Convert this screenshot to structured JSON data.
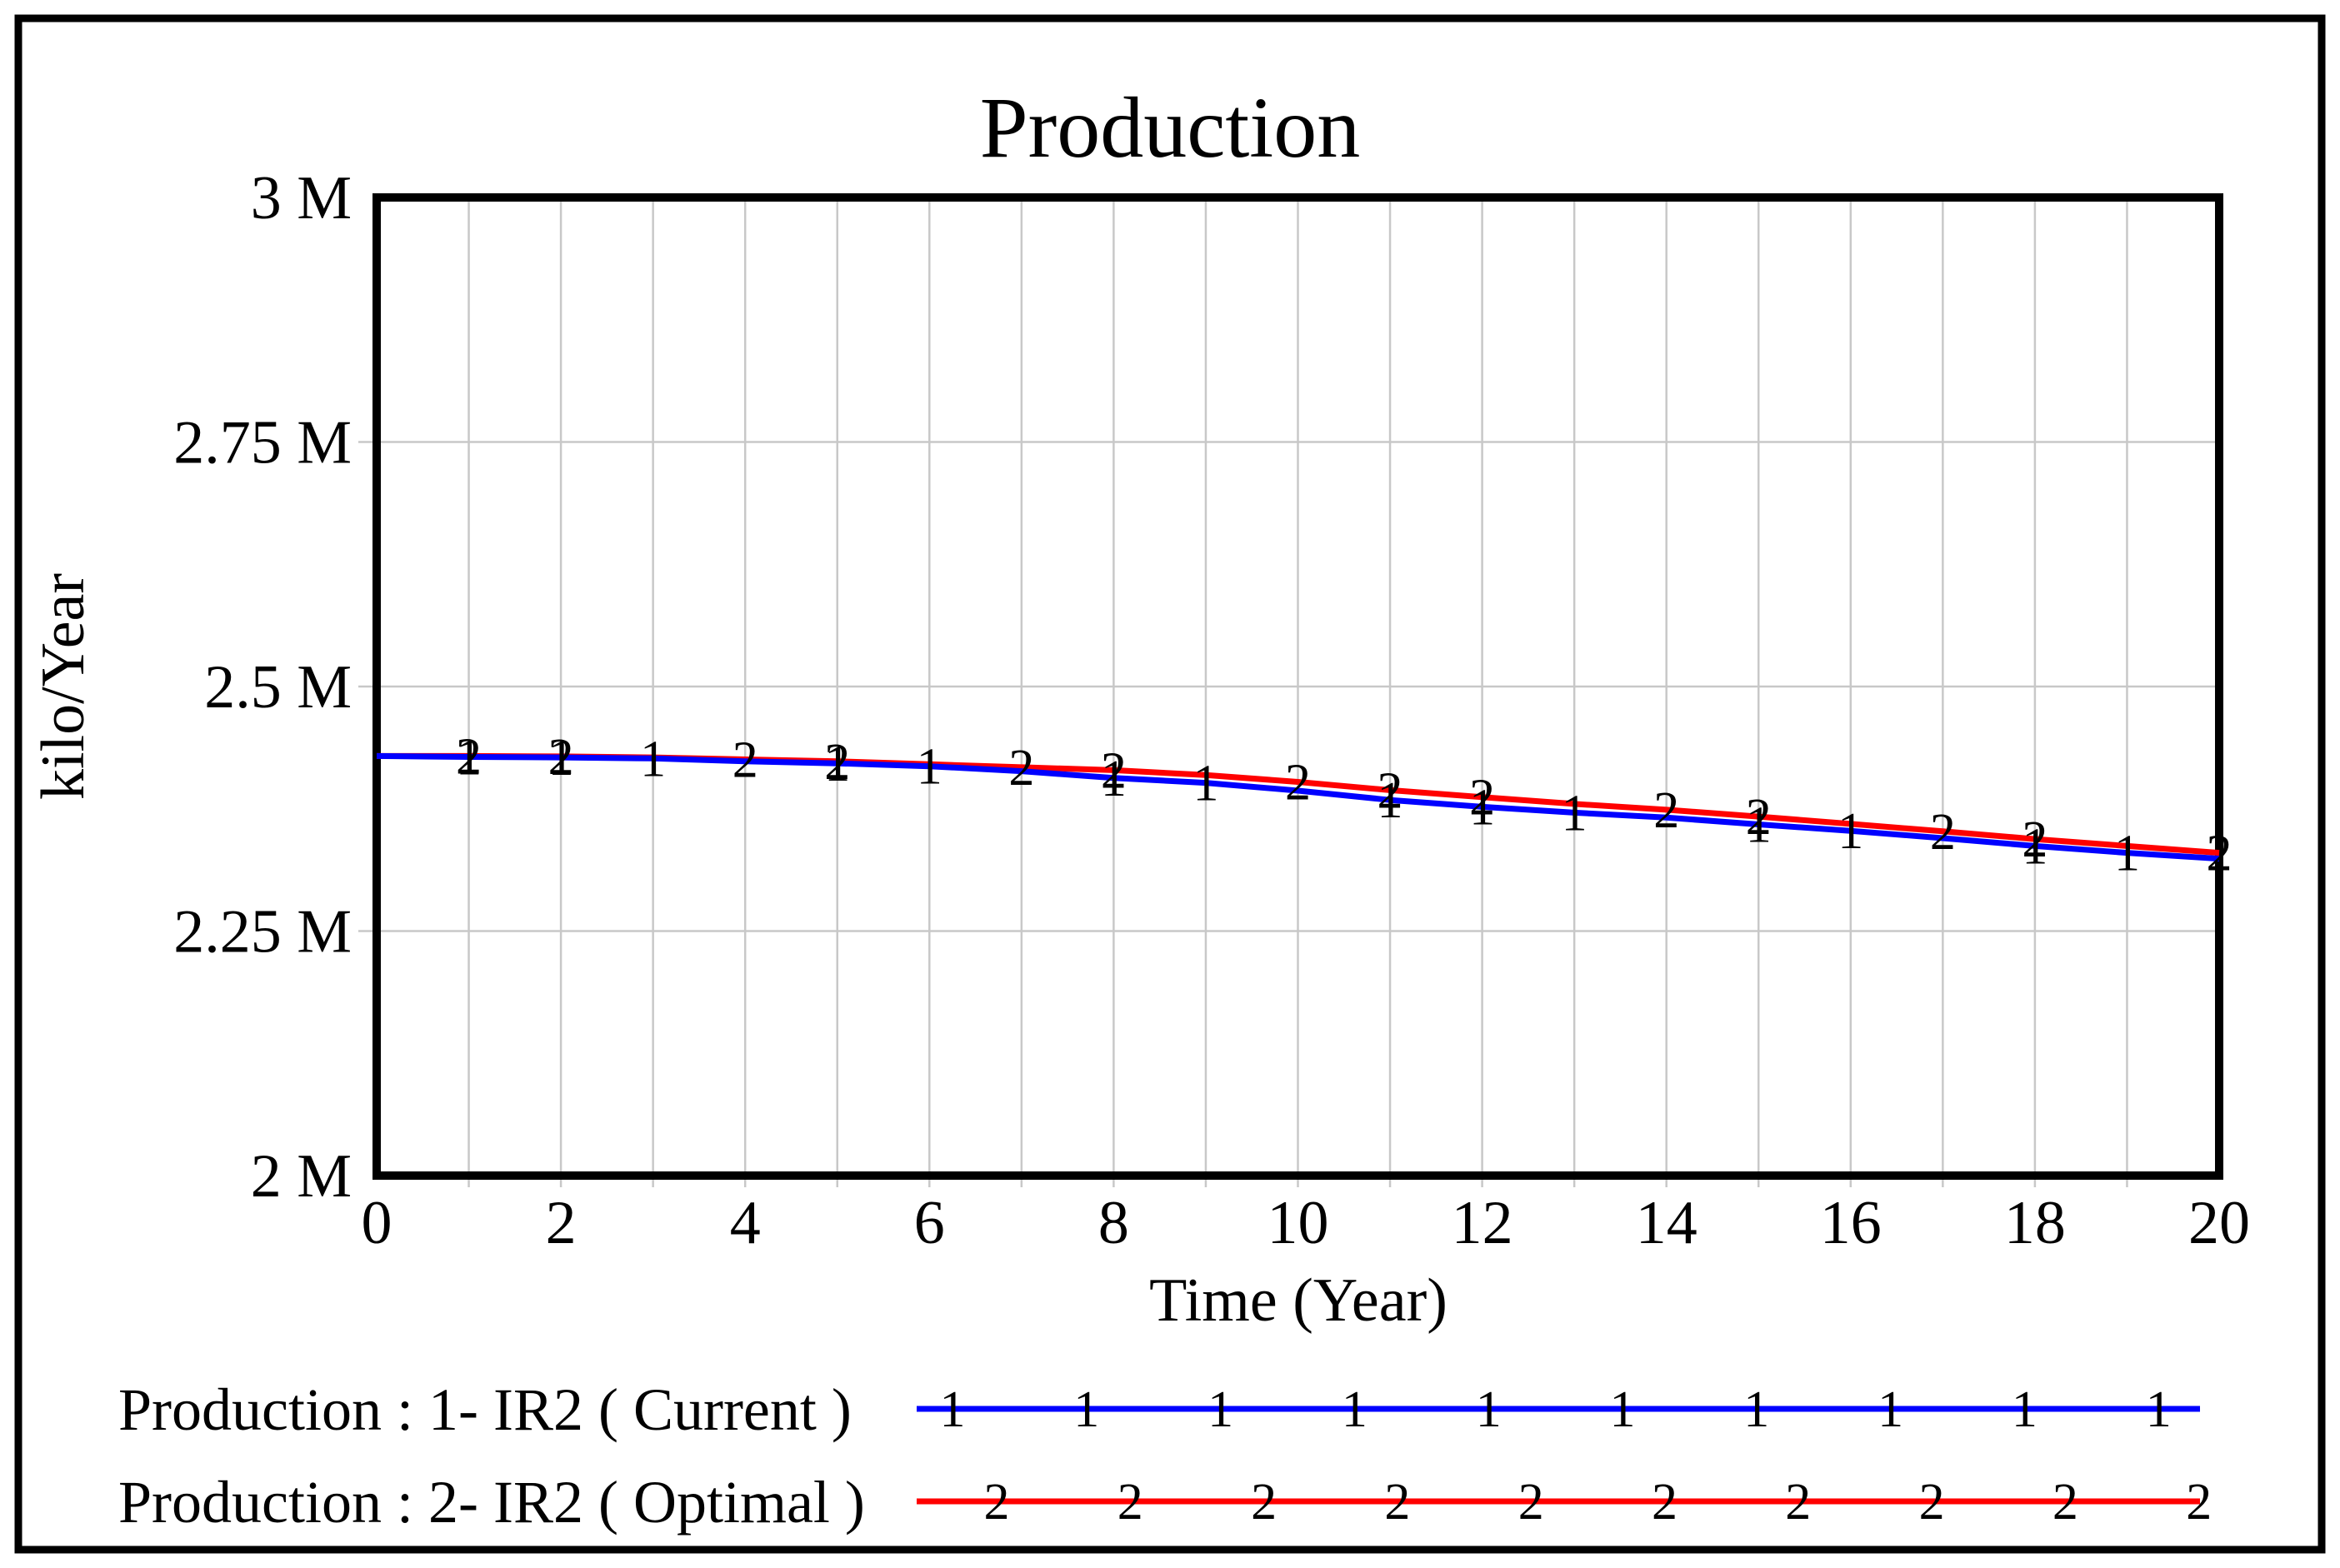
{
  "title": "Production",
  "axes": {
    "y": {
      "title": "kilo/Year",
      "range": [
        2,
        3
      ],
      "ticks": [
        {
          "value": 3,
          "label": "3 M"
        },
        {
          "value": 2.75,
          "label": "2.75 M"
        },
        {
          "value": 2.5,
          "label": "2.5 M"
        },
        {
          "value": 2.25,
          "label": "2.25 M"
        },
        {
          "value": 2,
          "label": "2 M"
        }
      ]
    },
    "x": {
      "title": "Time (Year)",
      "range": [
        0,
        20
      ],
      "tick_values": [
        0,
        2,
        4,
        6,
        8,
        10,
        12,
        14,
        16,
        18,
        20
      ],
      "gridline_years": [
        1,
        2,
        3,
        4,
        5,
        6,
        7,
        8,
        9,
        10,
        11,
        12,
        13,
        14,
        15,
        16,
        17,
        18,
        19
      ]
    }
  },
  "legend": [
    {
      "label": "Production : 1- IR2 ( Current )",
      "marker": "1",
      "color": "#0000ff"
    },
    {
      "label": "Production : 2- IR2 ( Optimal )",
      "marker": "2",
      "color": "#ff0000"
    }
  ],
  "chart_data": {
    "type": "line",
    "title": "Production",
    "xlabel": "Time (Year)",
    "ylabel": "kilo/Year",
    "unit": "millions of kilo/Year",
    "xlim": [
      0,
      20
    ],
    "ylim": [
      2,
      3
    ],
    "grid": true,
    "legend_position": "bottom-left",
    "x": [
      0,
      1,
      2,
      3,
      4,
      5,
      6,
      7,
      8,
      9,
      10,
      11,
      12,
      13,
      14,
      15,
      16,
      17,
      18,
      19,
      20
    ],
    "series": [
      {
        "name": "Production : 1- IR2 ( Current )",
        "marker": "1",
        "color": "#0000ff",
        "values": [
          2.429,
          2.428,
          2.4275,
          2.4265,
          2.4235,
          2.4215,
          2.4185,
          2.4135,
          2.4065,
          2.4015,
          2.3935,
          2.384,
          2.377,
          2.371,
          2.366,
          2.359,
          2.3525,
          2.345,
          2.337,
          2.33,
          2.324
        ],
        "marker_years": [
          1,
          2,
          3,
          5,
          6,
          8,
          9,
          11,
          12,
          13,
          15,
          16,
          18,
          19
        ]
      },
      {
        "name": "Production : 2- IR2 ( Optimal )",
        "marker": "2",
        "color": "#ff0000",
        "values": [
          2.429,
          2.429,
          2.4285,
          2.4275,
          2.4255,
          2.4235,
          2.4205,
          2.4175,
          2.4145,
          2.4095,
          2.4025,
          2.394,
          2.387,
          2.38,
          2.374,
          2.367,
          2.3595,
          2.352,
          2.344,
          2.337,
          2.33
        ],
        "marker_years": [
          1,
          2,
          4,
          5,
          7,
          8,
          10,
          11,
          12,
          14,
          15,
          17,
          18,
          20
        ]
      }
    ]
  }
}
